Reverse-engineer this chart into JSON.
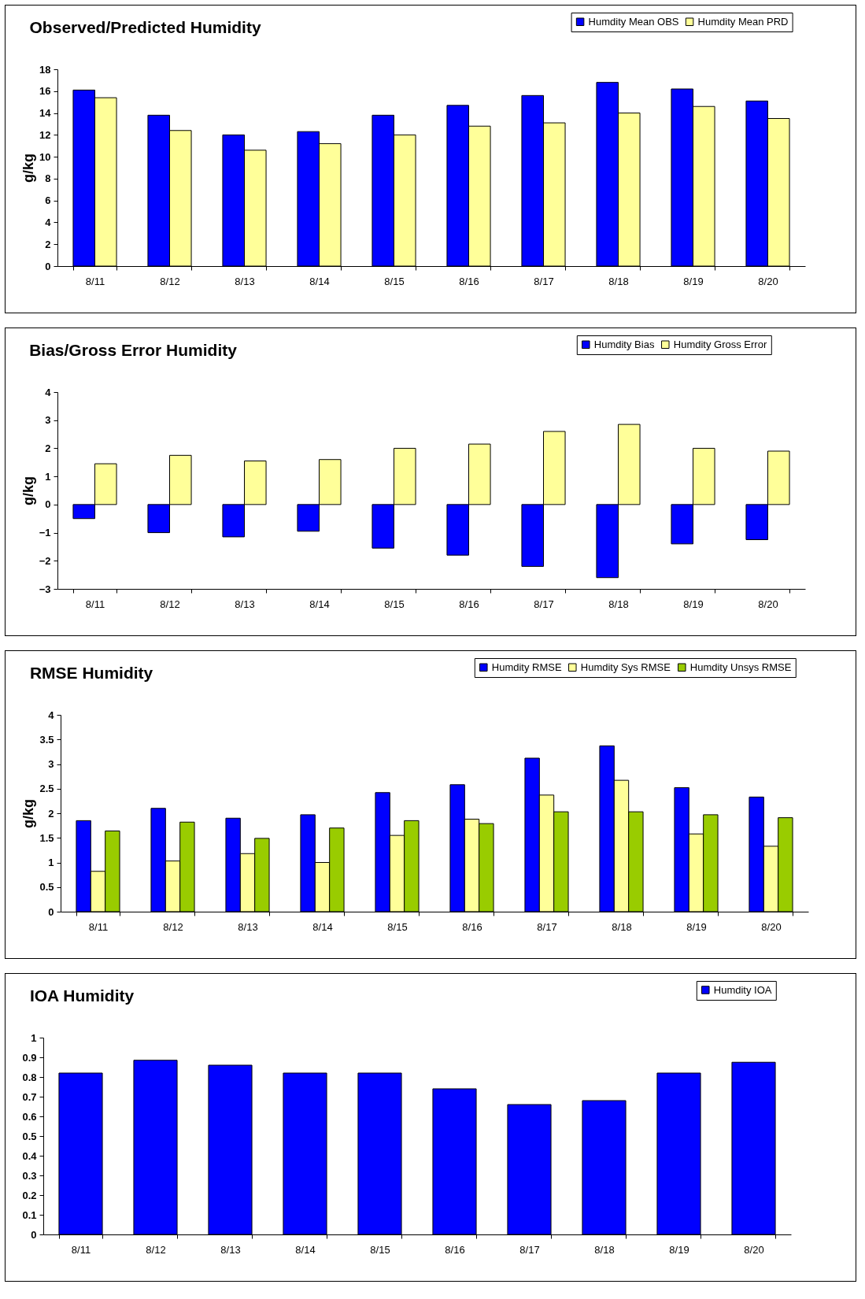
{
  "chart_data": [
    {
      "type": "bar",
      "title": "Observed/Predicted Humidity",
      "ylabel": "g/kg",
      "categories": [
        "8/11",
        "8/12",
        "8/13",
        "8/14",
        "8/15",
        "8/16",
        "8/17",
        "8/18",
        "8/19",
        "8/20"
      ],
      "ylim": [
        0,
        18
      ],
      "yticks": [
        0,
        2,
        4,
        6,
        8,
        10,
        12,
        14,
        16,
        18
      ],
      "legend": "top right",
      "series": [
        {
          "name": "Humdity Mean OBS",
          "color": "#0000ff",
          "values": [
            16.1,
            13.8,
            12.0,
            12.3,
            13.8,
            14.7,
            15.6,
            16.8,
            16.2,
            15.1
          ]
        },
        {
          "name": "Humdity Mean PRD",
          "color": "#ffff99",
          "values": [
            15.4,
            12.4,
            10.6,
            11.2,
            12.0,
            12.8,
            13.1,
            14.0,
            14.6,
            13.5
          ]
        }
      ]
    },
    {
      "type": "bar",
      "title": "Bias/Gross Error Humidity",
      "ylabel": "g/kg",
      "categories": [
        "8/11",
        "8/12",
        "8/13",
        "8/14",
        "8/15",
        "8/16",
        "8/17",
        "8/18",
        "8/19",
        "8/20"
      ],
      "ylim": [
        -3,
        4
      ],
      "yticks": [
        -3,
        -2,
        -1,
        0,
        1,
        2,
        3,
        4
      ],
      "legend": "top right",
      "series": [
        {
          "name": "Humdity Bias",
          "color": "#0000ff",
          "values": [
            -0.5,
            -1.0,
            -1.15,
            -0.95,
            -1.55,
            -1.8,
            -2.2,
            -2.6,
            -1.4,
            -1.25
          ]
        },
        {
          "name": "Humdity Gross Error",
          "color": "#ffff99",
          "values": [
            1.45,
            1.75,
            1.55,
            1.6,
            2.0,
            2.15,
            2.6,
            2.85,
            2.0,
            1.9
          ]
        }
      ]
    },
    {
      "type": "bar",
      "title": "RMSE Humidity",
      "ylabel": "g/kg",
      "categories": [
        "8/11",
        "8/12",
        "8/13",
        "8/14",
        "8/15",
        "8/16",
        "8/17",
        "8/18",
        "8/19",
        "8/20"
      ],
      "ylim": [
        0,
        4
      ],
      "yticks": [
        0,
        0.5,
        1,
        1.5,
        2,
        2.5,
        3,
        3.5,
        4
      ],
      "legend": "top right",
      "series": [
        {
          "name": "Humdity RMSE",
          "color": "#0000ff",
          "values": [
            1.85,
            2.1,
            1.9,
            1.97,
            2.42,
            2.58,
            3.12,
            3.37,
            2.52,
            2.33
          ]
        },
        {
          "name": "Humdity Sys RMSE",
          "color": "#ffff99",
          "values": [
            0.82,
            1.03,
            1.18,
            1.0,
            1.55,
            1.88,
            2.37,
            2.67,
            1.58,
            1.33
          ]
        },
        {
          "name": "Humdity Unsys RMSE",
          "color": "#99cc00",
          "values": [
            1.64,
            1.82,
            1.49,
            1.7,
            1.85,
            1.79,
            2.03,
            2.03,
            1.97,
            1.91
          ]
        }
      ]
    },
    {
      "type": "bar",
      "title": "IOA Humidity",
      "categories": [
        "8/11",
        "8/12",
        "8/13",
        "8/14",
        "8/15",
        "8/16",
        "8/17",
        "8/18",
        "8/19",
        "8/20"
      ],
      "ylim": [
        0,
        1
      ],
      "yticks": [
        0,
        0.1,
        0.2,
        0.3,
        0.4,
        0.5,
        0.6,
        0.7,
        0.8,
        0.9,
        1
      ],
      "legend": "top right",
      "series": [
        {
          "name": "Humdity IOA",
          "color": "#0000ff",
          "values": [
            0.82,
            0.885,
            0.86,
            0.82,
            0.82,
            0.74,
            0.66,
            0.68,
            0.82,
            0.875
          ]
        }
      ]
    }
  ]
}
